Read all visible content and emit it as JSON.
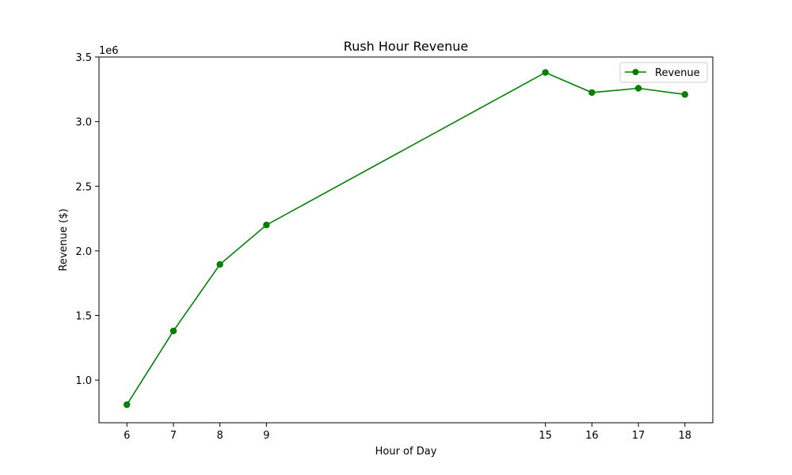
{
  "chart_data": {
    "type": "line",
    "title": "Rush Hour Revenue",
    "xlabel": "Hour of Day",
    "ylabel": "Revenue ($)",
    "y_offset_label": "1e6",
    "x": [
      6,
      7,
      8,
      9,
      15,
      16,
      17,
      18
    ],
    "xticks": [
      "6",
      "7",
      "8",
      "9",
      "15",
      "16",
      "17",
      "18"
    ],
    "yticks": [
      1.0,
      1.5,
      2.0,
      2.5,
      3.0,
      3.5
    ],
    "ytick_labels": [
      "1.0",
      "1.5",
      "2.0",
      "2.5",
      "3.0",
      "3.5"
    ],
    "xlim": [
      5.4,
      18.6
    ],
    "ylim": [
      670000,
      3500000
    ],
    "series": [
      {
        "name": "Revenue",
        "color": "#008000",
        "marker": "circle",
        "values": [
          810000,
          1380000,
          1895000,
          2200000,
          3380000,
          3225000,
          3258000,
          3210000
        ]
      }
    ],
    "legend": {
      "position": "top-right"
    },
    "grid": false
  }
}
